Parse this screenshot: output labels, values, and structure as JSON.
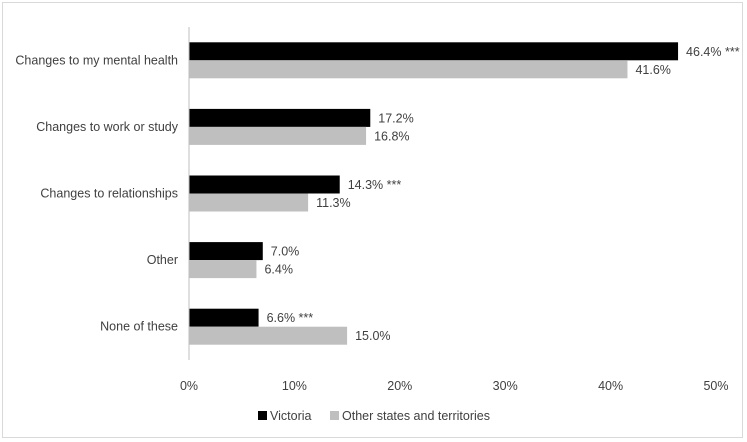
{
  "chart_data": {
    "type": "bar",
    "orientation": "horizontal",
    "categories": [
      "Changes to my mental health",
      "Changes to work or study",
      "Changes to relationships",
      "Other",
      "None of these"
    ],
    "series": [
      {
        "name": "Victoria",
        "color": "#000000",
        "values": [
          46.4,
          17.2,
          14.3,
          7.0,
          6.6
        ],
        "labels": [
          "46.4% ***",
          "17.2%",
          "14.3% ***",
          "7.0%",
          "6.6% ***"
        ]
      },
      {
        "name": "Other states and territories",
        "color": "#bfbfbf",
        "values": [
          41.6,
          16.8,
          11.3,
          6.4,
          15.0
        ],
        "labels": [
          "41.6%",
          "16.8%",
          "11.3%",
          "6.4%",
          "15.0%"
        ]
      }
    ],
    "xlim": [
      0,
      50
    ],
    "xticks": [
      "0%",
      "10%",
      "20%",
      "30%",
      "40%",
      "50%"
    ],
    "legend_position": "bottom",
    "grid": false
  }
}
